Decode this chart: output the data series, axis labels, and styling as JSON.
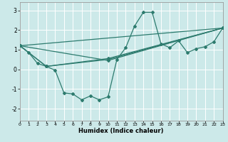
{
  "xlabel": "Humidex (Indice chaleur)",
  "ylabel": "",
  "xlim": [
    0,
    23
  ],
  "ylim": [
    -2.6,
    3.4
  ],
  "xticks": [
    0,
    1,
    2,
    3,
    4,
    5,
    6,
    7,
    8,
    9,
    10,
    11,
    12,
    13,
    14,
    15,
    16,
    17,
    18,
    19,
    20,
    21,
    22,
    23
  ],
  "yticks": [
    -2,
    -1,
    0,
    1,
    2,
    3
  ],
  "background_color": "#cce9e9",
  "line_color": "#2d7b6e",
  "series_main": {
    "x": [
      0,
      1,
      2,
      3,
      4,
      5,
      6,
      7,
      8,
      9,
      10,
      11,
      12,
      13,
      14,
      15,
      16,
      17,
      18,
      19,
      20,
      21,
      22,
      23
    ],
    "y": [
      1.2,
      0.85,
      0.3,
      0.15,
      -0.05,
      -1.2,
      -1.25,
      -1.55,
      -1.35,
      -1.55,
      -1.4,
      0.5,
      1.1,
      2.2,
      2.9,
      2.9,
      1.3,
      1.1,
      1.45,
      0.85,
      1.05,
      1.15,
      1.4,
      2.1
    ]
  },
  "series_lines": [
    {
      "x": [
        0,
        23
      ],
      "y": [
        1.2,
        2.1
      ]
    },
    {
      "x": [
        0,
        10,
        23
      ],
      "y": [
        1.2,
        0.45,
        2.1
      ]
    },
    {
      "x": [
        0,
        3,
        10,
        23
      ],
      "y": [
        1.2,
        0.15,
        0.55,
        2.1
      ]
    },
    {
      "x": [
        0,
        3,
        10,
        23
      ],
      "y": [
        1.2,
        0.15,
        0.5,
        2.1
      ]
    }
  ]
}
